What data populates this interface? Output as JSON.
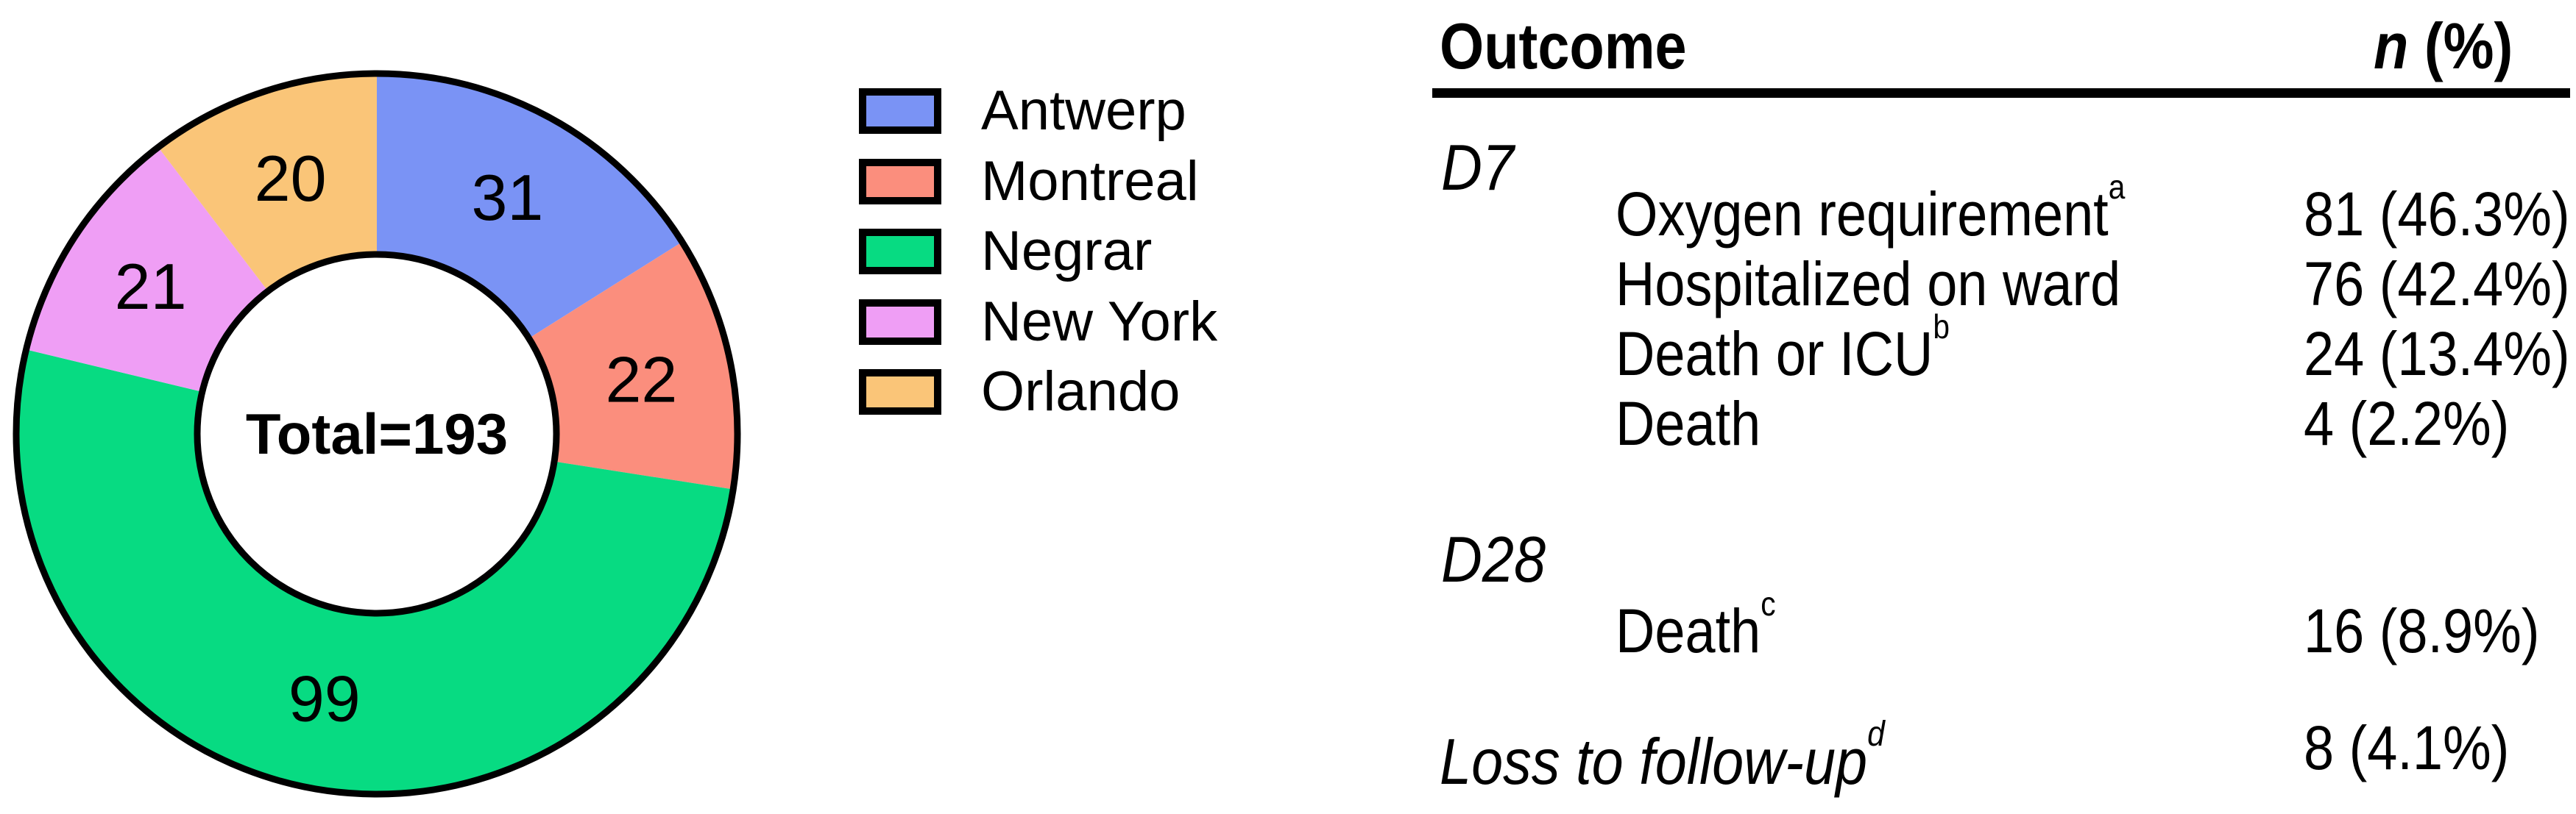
{
  "chart_data": {
    "type": "pie",
    "subtype": "donut",
    "direction": "clockwise",
    "start_angle_deg": 0,
    "categories": [
      "Antwerp",
      "Montreal",
      "Negrar",
      "New York",
      "Orlando"
    ],
    "values": [
      31,
      22,
      99,
      21,
      20
    ],
    "colors": [
      "#7A93F5",
      "#FB8E7D",
      "#07DB82",
      "#EF9EF5",
      "#FAC578"
    ],
    "outline_color": "#000000",
    "center_label": "Total=193",
    "total": 193,
    "legend_position": "right",
    "slice_labels": [
      "31",
      "22",
      "99",
      "21",
      "20"
    ]
  },
  "table": {
    "header": {
      "outcome": "Outcome",
      "n_italic": "n",
      "n_rest": " (%)"
    },
    "sections": [
      {
        "label": "D7",
        "rows": [
          {
            "label": "Oxygen requirement",
            "sup": "a",
            "value": "81 (46.3%)"
          },
          {
            "label": "Hospitalized on ward",
            "sup": "",
            "value": "76 (42.4%)"
          },
          {
            "label": "Death or ICU",
            "sup": "b",
            "value": "24 (13.4%)"
          },
          {
            "label": "Death",
            "sup": "",
            "value": "4 (2.2%)"
          }
        ]
      },
      {
        "label": "D28",
        "rows": [
          {
            "label": "Death",
            "sup": "c",
            "value": "16 (8.9%)"
          }
        ]
      }
    ],
    "footer_row": {
      "label": "Loss to follow-up",
      "sup": "d",
      "value": "8 (4.1%)"
    }
  }
}
